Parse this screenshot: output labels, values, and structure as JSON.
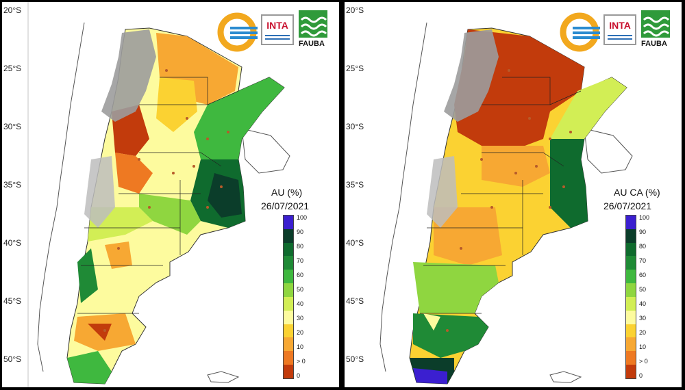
{
  "maps": [
    {
      "id": "left",
      "legend_title": "AU (%)",
      "legend_date": "26/07/2021",
      "latitude_labels": [
        "20°S",
        "25°S",
        "30°S",
        "35°S",
        "40°S",
        "45°S",
        "50°S"
      ]
    },
    {
      "id": "right",
      "legend_title": "AU CA (%)",
      "legend_date": "26/07/2021",
      "latitude_labels": [
        "20°S",
        "25°S",
        "30°S",
        "35°S",
        "40°S",
        "45°S",
        "50°S"
      ]
    }
  ],
  "legend": {
    "ticks": [
      "100",
      "90",
      "80",
      "70",
      "60",
      "50",
      "40",
      "30",
      "20",
      "10",
      "> 0",
      "0"
    ],
    "colors": [
      "#3b1fd0",
      "#0b3d2a",
      "#0f6b2e",
      "#1f8a36",
      "#3fb83f",
      "#8fd640",
      "#d2ee55",
      "#fdfb9e",
      "#fbd232",
      "#f7a833",
      "#ee7922",
      "#c23b0c"
    ]
  },
  "logos": {
    "inta": "INTA",
    "fauba": "FAUBA"
  },
  "icons": [
    "smn-logo-icon",
    "inta-logo-icon",
    "fauba-logo-icon"
  ]
}
